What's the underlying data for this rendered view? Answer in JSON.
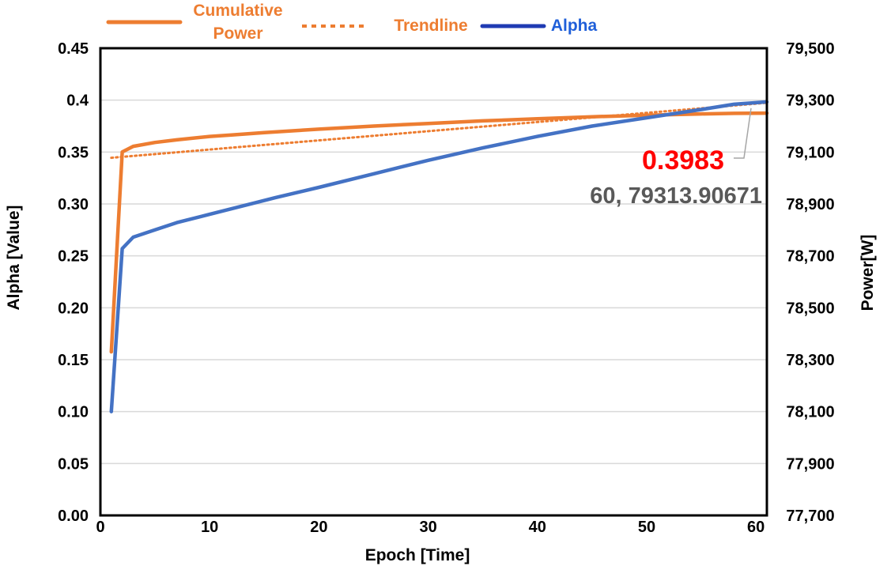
{
  "chart_data": {
    "type": "line",
    "x_label": "Epoch [Time]",
    "y_left_label": "Alpha [Value]",
    "y_right_label": "Power[W]",
    "x_range": [
      0,
      61
    ],
    "x_ticks": [
      0,
      10,
      20,
      30,
      40,
      50,
      60
    ],
    "y_left_range": [
      0,
      0.45
    ],
    "y_left_ticks": [
      "0.00",
      "0.05",
      "0.10",
      "0.15",
      "0.20",
      "0.25",
      "0.30",
      "0.35",
      "0.4",
      "0.45"
    ],
    "y_right_range": [
      77700,
      79500
    ],
    "y_right_ticks": [
      "77,700",
      "77,900",
      "78,100",
      "78,300",
      "78,500",
      "78,700",
      "78,900",
      "79,100",
      "79,300",
      "79,500"
    ],
    "grid": "horizontal",
    "legend_position": "top",
    "legend": [
      {
        "label": "Cumulative Power",
        "label_lines": [
          "Cumulative",
          "Power"
        ],
        "style": "solid",
        "color": "#ED7D31"
      },
      {
        "label": "Trendline",
        "label_lines": [
          "Trendline"
        ],
        "style": "dotted",
        "color": "#ED7D31"
      },
      {
        "label": "Alpha",
        "label_lines": [
          "Alpha"
        ],
        "style": "solid",
        "color": "#4472C4"
      }
    ],
    "series": [
      {
        "name": "Cumulative Power",
        "axis": "right",
        "color": "#ED7D31",
        "x": [
          1,
          2,
          3,
          5,
          7,
          10,
          12,
          15,
          18,
          20,
          25,
          28,
          30,
          35,
          40,
          45,
          50,
          55,
          58,
          61
        ],
        "y": [
          78330,
          79100,
          79122,
          79137,
          79147,
          79160,
          79166,
          79175,
          79183,
          79188,
          79200,
          79206,
          79210,
          79220,
          79228,
          79236,
          79242,
          79247,
          79249,
          79250
        ]
      },
      {
        "name": "Trendline",
        "axis": "right",
        "color": "#ED7D31",
        "style": "dotted",
        "x": [
          1,
          61
        ],
        "y": [
          79078,
          79290
        ]
      },
      {
        "name": "Alpha",
        "axis": "left",
        "color": "#4472C4",
        "x": [
          1,
          2,
          3,
          5,
          7,
          10,
          13,
          16,
          20,
          25,
          30,
          35,
          40,
          45,
          50,
          55,
          58,
          61
        ],
        "y": [
          0.1,
          0.257,
          0.268,
          0.275,
          0.282,
          0.29,
          0.298,
          0.306,
          0.316,
          0.329,
          0.342,
          0.354,
          0.365,
          0.375,
          0.383,
          0.391,
          0.396,
          0.3983
        ]
      }
    ],
    "annotations": [
      {
        "text": "0.3983",
        "color": "#FF0000",
        "x": 61,
        "y": 0.3983,
        "axis": "left"
      },
      {
        "text": "60, 79313.90671",
        "color": "#595959"
      }
    ]
  }
}
